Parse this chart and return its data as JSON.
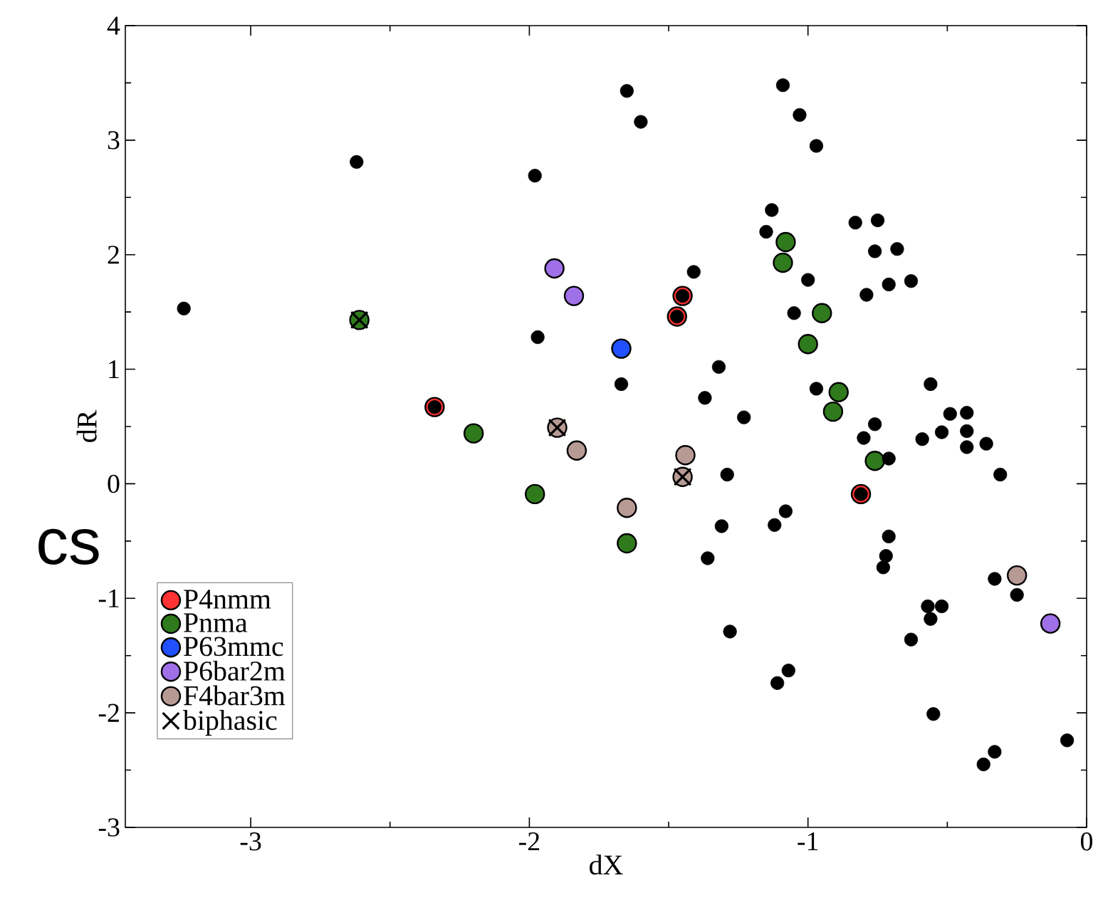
{
  "chart_data": {
    "type": "scatter",
    "xlabel": "dX",
    "ylabel": "dR",
    "xlim": [
      -3.45,
      0
    ],
    "ylim": [
      -3,
      4
    ],
    "xticks": [
      -3,
      -2,
      -1,
      0
    ],
    "yticks": [
      -3,
      -2,
      -1,
      0,
      1,
      2,
      3,
      4
    ],
    "legend": "bottom left",
    "grid": false,
    "annotations": [
      "cs"
    ],
    "series": [
      {
        "name": "P4nmm",
        "color": "#ff3333",
        "marker": "circle",
        "x": [
          -1.45,
          -1.47,
          -2.34,
          -0.81
        ],
        "values": [
          1.64,
          1.46,
          0.67,
          -0.09
        ]
      },
      {
        "name": "Pnma",
        "color": "#2f7a1c",
        "marker": "circle",
        "x": [
          -2.61,
          -2.2,
          -1.98,
          -1.65,
          -1.08,
          -1.09,
          -0.95,
          -1.0,
          -0.89,
          -0.91,
          -0.76
        ],
        "values": [
          1.43,
          0.44,
          -0.09,
          -0.52,
          2.11,
          1.93,
          1.49,
          1.22,
          0.8,
          0.63,
          0.2
        ]
      },
      {
        "name": "P63mmc",
        "color": "#2050ff",
        "marker": "circle",
        "x": [
          -1.67
        ],
        "values": [
          1.18
        ]
      },
      {
        "name": "P6bar2m",
        "color": "#a070e8",
        "marker": "circle",
        "x": [
          -1.91,
          -1.84,
          -0.13
        ],
        "values": [
          1.88,
          1.64,
          -1.22
        ]
      },
      {
        "name": "F4bar3m",
        "color": "#b89a94",
        "marker": "circle",
        "x": [
          -1.9,
          -1.83,
          -1.65,
          -1.44,
          -1.45,
          -0.25
        ],
        "values": [
          0.49,
          0.29,
          -0.21,
          0.25,
          0.06,
          -0.8
        ]
      },
      {
        "name": "biphasic",
        "color": "#000000",
        "marker": "cross",
        "x": [
          -2.61,
          -1.9,
          -1.45
        ],
        "values": [
          1.43,
          0.49,
          0.06
        ]
      },
      {
        "color": "#000000",
        "marker": "circle",
        "x": [
          -3.24,
          -2.62,
          -1.98,
          -1.97,
          -1.65,
          -1.6,
          -1.09,
          -1.03,
          -0.97,
          -1.13,
          -1.15,
          -1.41,
          -1.0,
          -0.83,
          -0.75,
          -0.76,
          -0.68,
          -0.79,
          -0.71,
          -0.63,
          -1.05,
          -1.67,
          -1.32,
          -1.37,
          -1.23,
          -0.97,
          -0.56,
          -0.49,
          -0.43,
          -0.52,
          -0.43,
          -0.36,
          -0.43,
          -0.59,
          -0.76,
          -0.8,
          -1.45,
          -1.47,
          -2.34,
          -0.81,
          -1.29,
          -1.31,
          -1.36,
          -1.28,
          -1.08,
          -1.12,
          -1.07,
          -1.11,
          -0.71,
          -0.72,
          -0.73,
          -0.33,
          -0.25,
          -0.57,
          -0.52,
          -0.56,
          -0.63,
          -0.55,
          -0.07,
          -0.33,
          -0.37,
          -0.31,
          -0.71
        ],
        "values": [
          1.53,
          2.81,
          2.69,
          1.28,
          3.43,
          3.16,
          3.48,
          3.22,
          2.95,
          2.39,
          2.2,
          1.85,
          1.78,
          2.28,
          2.3,
          2.03,
          2.05,
          1.65,
          1.74,
          1.77,
          1.49,
          0.87,
          1.02,
          0.75,
          0.58,
          0.83,
          0.87,
          0.61,
          0.62,
          0.45,
          0.46,
          0.35,
          0.32,
          0.39,
          0.52,
          0.4,
          1.64,
          1.46,
          0.67,
          -0.09,
          0.08,
          -0.37,
          -0.65,
          -1.29,
          -0.24,
          -0.36,
          -1.63,
          -1.74,
          -0.46,
          -0.63,
          -0.73,
          -0.83,
          -0.97,
          -1.07,
          -1.07,
          -1.18,
          -1.36,
          -2.01,
          -2.24,
          -2.34,
          -2.45,
          0.08,
          0.22
        ]
      }
    ]
  }
}
